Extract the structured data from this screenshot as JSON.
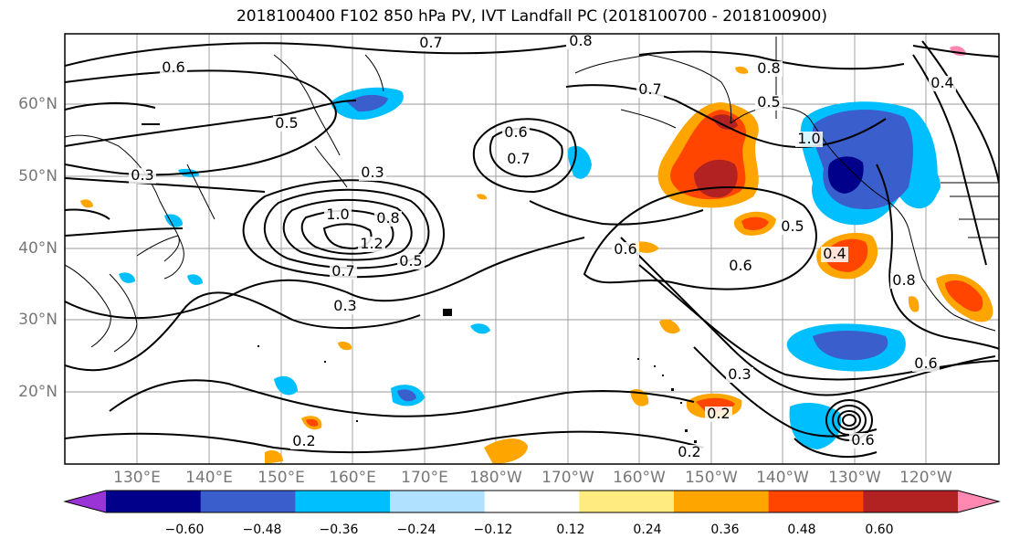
{
  "title": "2018100400 F102 850 hPa PV, IVT Landfall PC (2018100700 - 2018100900)",
  "lat_labels": [
    "60°N",
    "50°N",
    "40°N",
    "30°N",
    "20°N"
  ],
  "lon_labels": [
    "130°E",
    "140°E",
    "150°E",
    "160°E",
    "170°E",
    "180°W",
    "170°W",
    "160°W",
    "150°W",
    "140°W",
    "130°W",
    "120°W"
  ],
  "contour_labels": [
    "0.7",
    "0.8",
    "0.6",
    "0.8",
    "0.7",
    "0.4",
    "0.5",
    "0.5",
    "0.3",
    "0.6",
    "0.7",
    "0.3",
    "1.0",
    "0.8",
    "1.2",
    "0.5",
    "0.7",
    "0.3",
    "0.6",
    "0.5",
    "0.6",
    "0.4",
    "0.8",
    "0.6",
    "0.3",
    "0.2",
    "0.2",
    "0.2",
    "0.6",
    "1.0"
  ],
  "colorbar": {
    "tick_labels": [
      "−0.60",
      "−0.48",
      "−0.36",
      "−0.24",
      "−0.12",
      "0.12",
      "0.24",
      "0.36",
      "0.48",
      "0.60"
    ],
    "colors": [
      "#9b34d6",
      "#00008b",
      "#3a5fcd",
      "#00bfff",
      "#b0e2ff",
      "#ffffff",
      "#ffeb80",
      "#ffa500",
      "#ff4500",
      "#b22222",
      "#ff88b2"
    ]
  }
}
